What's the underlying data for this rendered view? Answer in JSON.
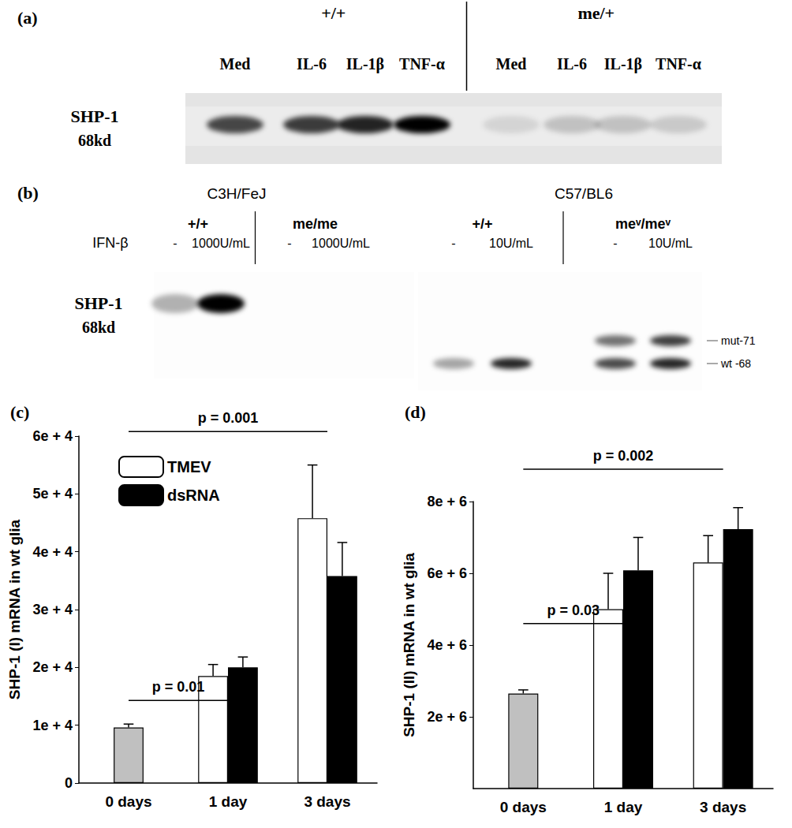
{
  "figure": {
    "blot_a": {
      "label": "(a)",
      "protein": "SHP-1",
      "size": "68kd",
      "groups": [
        {
          "genotype": "+/+",
          "lanes": [
            "Med",
            "IL-6",
            "IL-1β",
            "TNF-α"
          ],
          "bands": [
            0.7,
            0.75,
            0.85,
            1.0
          ]
        },
        {
          "genotype": "me/+",
          "lanes": [
            "Med",
            "IL-6",
            "IL-1β",
            "TNF-α"
          ],
          "bands": [
            0.1,
            0.18,
            0.18,
            0.15
          ]
        }
      ]
    },
    "blot_b": {
      "label": "(b)",
      "protein": "SHP-1",
      "size": "68kd",
      "treatment": "IFN-β",
      "blots": [
        {
          "strain": "C3H/FeJ",
          "groups": [
            {
              "genotype": "+/+",
              "lanes": [
                "-",
                "1000U/mL"
              ]
            },
            {
              "genotype": "me/me",
              "lanes": [
                "-",
                "1000U/mL"
              ]
            }
          ],
          "bands": [
            {
              "values": [
                0.3,
                1.0,
                0,
                0
              ]
            }
          ]
        },
        {
          "strain": "C57/BL6",
          "groups": [
            {
              "genotype": "+/+",
              "lanes": [
                "-",
                "10U/mL"
              ]
            },
            {
              "genotype": "meᵛ/meᵛ",
              "lanes": [
                "-",
                "10U/mL"
              ]
            }
          ],
          "bands": [
            {
              "name": "mut-71",
              "values": [
                0,
                0,
                0.55,
                0.75
              ]
            },
            {
              "name": "wt -68",
              "values": [
                0.35,
                0.85,
                0.7,
                0.85
              ]
            }
          ]
        }
      ]
    }
  },
  "chart_data": [
    {
      "type": "bar",
      "label": "(c)",
      "y_label": "SHP-1 (I) mRNA in wt glia",
      "categories": [
        "0 days",
        "1 day",
        "3 days"
      ],
      "series": [
        {
          "color": "#c0c0c0",
          "values": [
            9600,
            null,
            null
          ],
          "errors": [
            600,
            null,
            null
          ]
        },
        {
          "name": "TMEV",
          "color": "#ffffff",
          "values": [
            null,
            18500,
            45800
          ],
          "errors": [
            null,
            2000,
            9200
          ]
        },
        {
          "name": "dsRNA",
          "color": "#000000",
          "values": [
            null,
            20000,
            35800
          ],
          "errors": [
            null,
            1800,
            5800
          ]
        }
      ],
      "ylim": [
        0,
        60000
      ],
      "yticks": [
        0,
        {
          "value": 10000,
          "label": "1e + 4"
        },
        {
          "value": 20000,
          "label": "2e + 4"
        },
        {
          "value": 30000,
          "label": "3e + 4"
        },
        {
          "value": 40000,
          "label": "4e + 4"
        },
        {
          "value": 50000,
          "label": "5e + 4"
        },
        {
          "value": 60000,
          "label": "6e + 4"
        }
      ],
      "grid": false,
      "legend": "upper left",
      "annotations": [
        {
          "text": "p = 0.01",
          "x": [
            "0 days",
            "1 day"
          ],
          "y": 14300
        },
        {
          "text": "p = 0.001",
          "x": [
            "0 days",
            "3 days"
          ],
          "y": 60800
        }
      ]
    },
    {
      "type": "bar",
      "label": "(d)",
      "y_label": "SHP-1 (II) mRNA in wt glia",
      "categories": [
        "0 days",
        "1 day",
        "3 days"
      ],
      "series": [
        {
          "color": "#c0c0c0",
          "values": [
            2650000,
            null,
            null
          ],
          "errors": [
            100000,
            null,
            null
          ]
        },
        {
          "name": "TMEV",
          "color": "#ffffff",
          "values": [
            null,
            5000000,
            6300000
          ],
          "errors": [
            null,
            1000000,
            750000
          ]
        },
        {
          "name": "dsRNA",
          "color": "#000000",
          "values": [
            null,
            6080000,
            7230000
          ],
          "errors": [
            null,
            920000,
            600000
          ]
        }
      ],
      "ylim": [
        0,
        8000000
      ],
      "yticks": [
        {
          "value": 2000000,
          "label": "2e + 6"
        },
        {
          "value": 4000000,
          "label": "4e + 6"
        },
        {
          "value": 6000000,
          "label": "6e + 6"
        },
        {
          "value": 8000000,
          "label": "8e + 6"
        }
      ],
      "grid": false,
      "annotations": [
        {
          "text": "p = 0.03",
          "x": [
            "0 days",
            "1 day"
          ],
          "y": 4600000
        },
        {
          "text": "p = 0.002",
          "x": [
            "0 days",
            "3 days"
          ],
          "y": 8900000
        }
      ]
    }
  ]
}
